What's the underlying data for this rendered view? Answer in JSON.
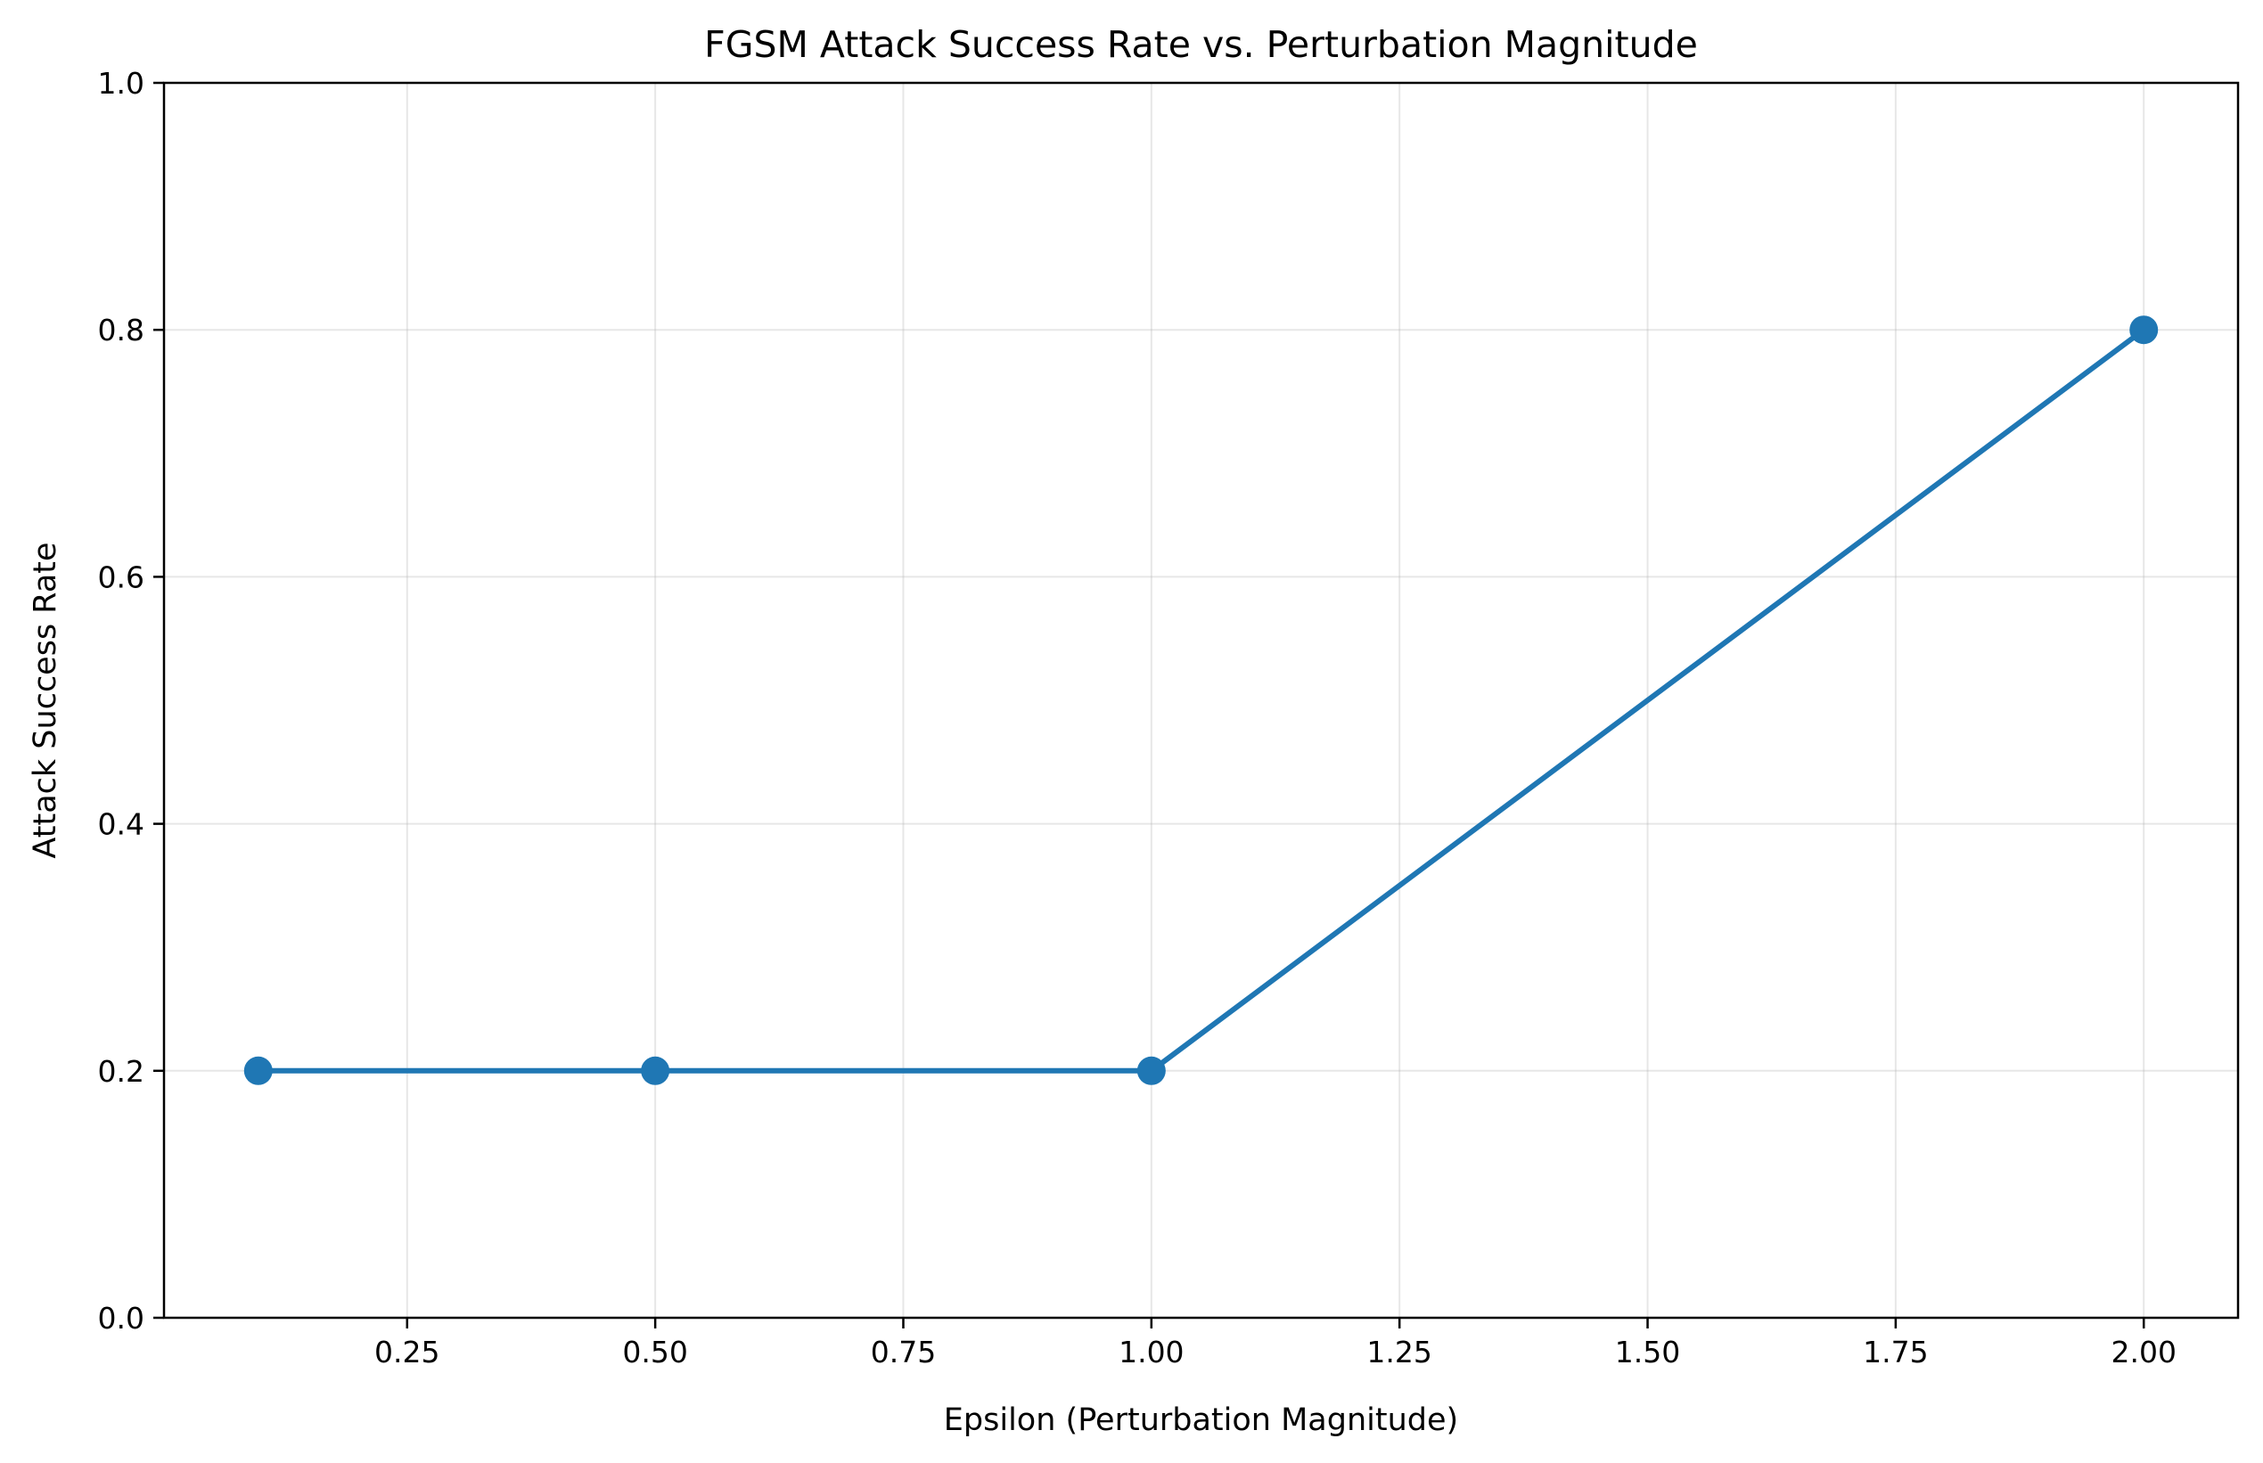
{
  "chart_data": {
    "type": "line",
    "title": "FGSM Attack Success Rate vs. Perturbation Magnitude",
    "xlabel": "Epsilon (Perturbation Magnitude)",
    "ylabel": "Attack Success Rate",
    "xlim": [
      0.005,
      2.095
    ],
    "ylim": [
      0.0,
      1.0
    ],
    "x_ticks": [
      0.25,
      0.5,
      0.75,
      1.0,
      1.25,
      1.5,
      1.75,
      2.0
    ],
    "x_tick_labels": [
      "0.25",
      "0.50",
      "0.75",
      "1.00",
      "1.25",
      "1.50",
      "1.75",
      "2.00"
    ],
    "y_ticks": [
      0.0,
      0.2,
      0.4,
      0.6,
      0.8,
      1.0
    ],
    "y_tick_labels": [
      "0.0",
      "0.2",
      "0.4",
      "0.6",
      "0.8",
      "1.0"
    ],
    "grid": true,
    "series": [
      {
        "x": [
          0.1,
          0.5,
          1.0,
          2.0
        ],
        "y": [
          0.2,
          0.2,
          0.2,
          0.8
        ],
        "color": "#1f77b4",
        "marker": "circle"
      }
    ]
  }
}
